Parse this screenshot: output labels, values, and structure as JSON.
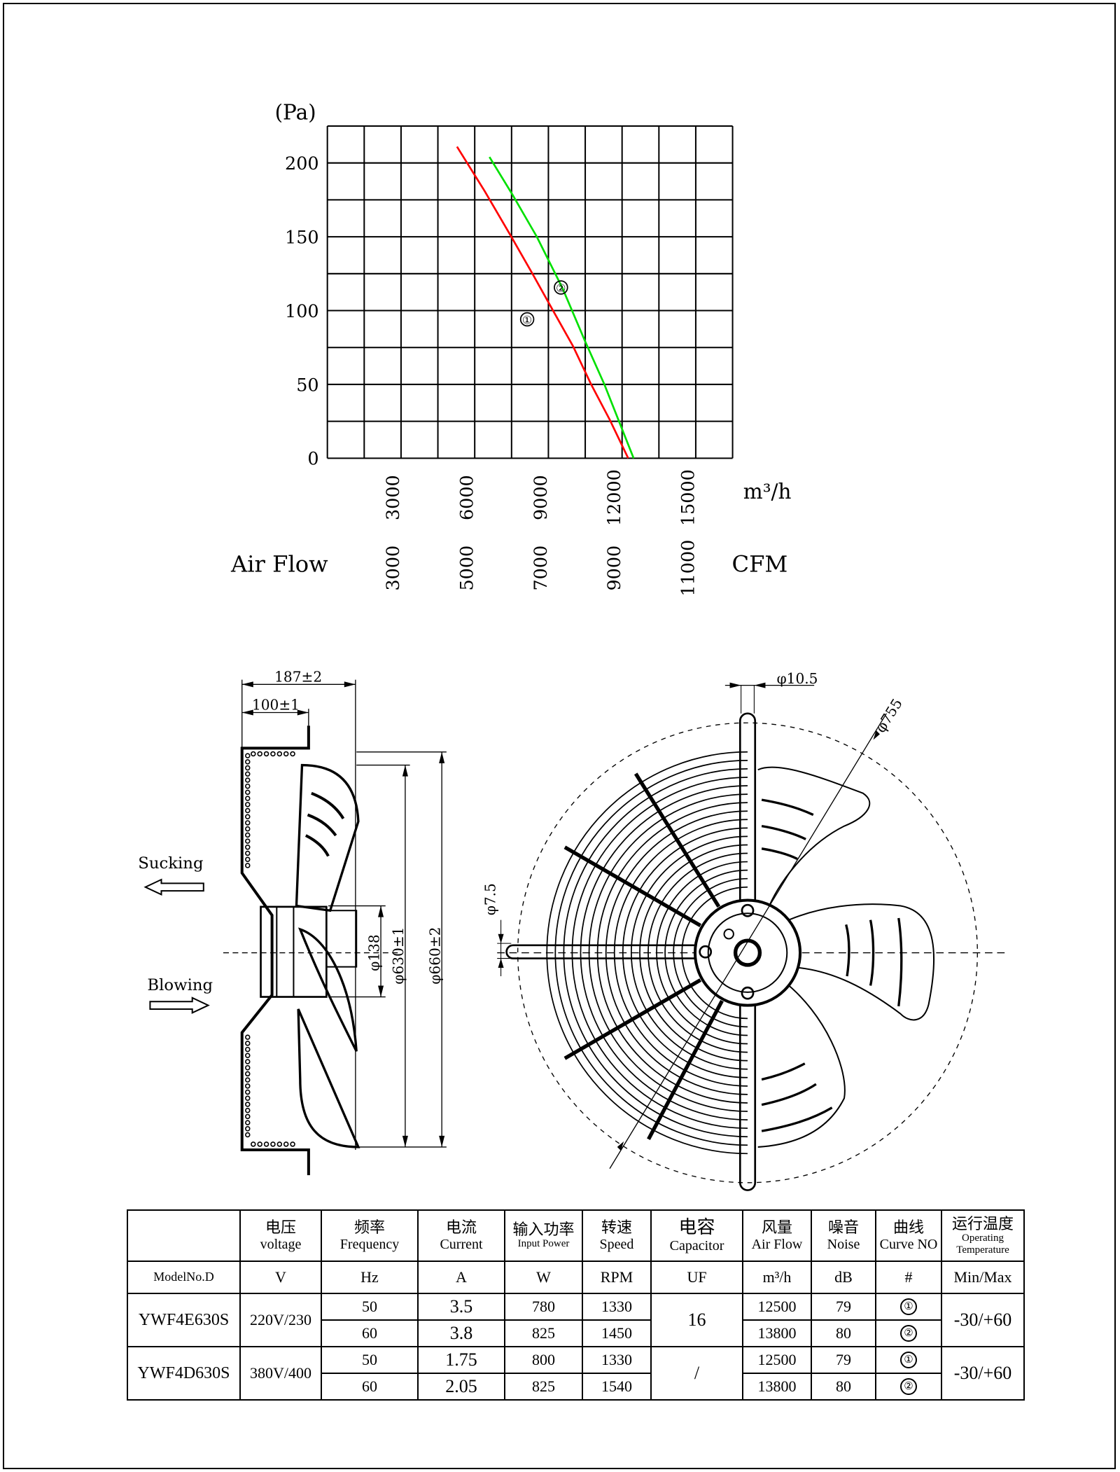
{
  "chart_data": {
    "type": "line",
    "ylabel": "(Pa)",
    "xlabel": "Air Flow",
    "x_unit_primary": "m³/h",
    "x_unit_secondary": "CFM",
    "xlim": [
      0,
      16500
    ],
    "ylim": [
      0,
      225
    ],
    "grid": true,
    "y_ticks": [
      "0",
      "50",
      "100",
      "150",
      "200"
    ],
    "y_tick_values": [
      0,
      50,
      100,
      150,
      200
    ],
    "x_ticks_primary": [
      "3000",
      "6000",
      "9000",
      "12000",
      "15000"
    ],
    "x_tick_values": [
      3000,
      6000,
      9000,
      12000,
      15000
    ],
    "x_ticks_secondary": [
      "3000",
      "5000",
      "7000",
      "9000",
      "11000"
    ],
    "series": [
      {
        "name": "①",
        "color": "#ff0000",
        "x": [
          5280,
          6400,
          7490,
          8350,
          9190,
          10000,
          10740,
          11500,
          12250
        ],
        "y": [
          211,
          181,
          150,
          125,
          100,
          76,
          50,
          26,
          0
        ]
      },
      {
        "name": "②",
        "color": "#00e000",
        "x": [
          6600,
          7520,
          8530,
          9580,
          10500,
          11280,
          11970,
          12470
        ],
        "y": [
          204,
          179,
          150,
          115,
          79,
          50,
          21,
          0
        ]
      }
    ],
    "annotations": [
      "①",
      "②"
    ]
  },
  "drawing": {
    "side_view": {
      "sucking": "Sucking",
      "blowing": "Blowing",
      "dim_depth": "187±2",
      "dim_flange": "100±1",
      "dim_hub": "φ138",
      "dim_blade": "φ630±1",
      "dim_frame": "φ660±2"
    },
    "front_view": {
      "dim_hole": "φ10.5",
      "dim_mount": "φ755",
      "dim_slot": "φ7.5"
    }
  },
  "table": {
    "headers": [
      {
        "zh": "",
        "en": ""
      },
      {
        "zh": "电压",
        "en": "voltage"
      },
      {
        "zh": "频率",
        "en": "Frequency"
      },
      {
        "zh": "电流",
        "en": "Current"
      },
      {
        "zh": "输入功率",
        "en": "Input Power"
      },
      {
        "zh": "转速",
        "en": "Speed"
      },
      {
        "zh": "电容",
        "en": "Capacitor"
      },
      {
        "zh": "风量",
        "en": "Air Flow"
      },
      {
        "zh": "噪音",
        "en": "Noise"
      },
      {
        "zh": "曲线",
        "en": "Curve NO"
      },
      {
        "zh": "运行温度",
        "en": "Operating",
        "en2": "Temperature"
      }
    ],
    "units": [
      "ModelNo.D",
      "V",
      "Hz",
      "A",
      "W",
      "RPM",
      "UF",
      "m³/h",
      "dB",
      "#",
      "Min/Max"
    ],
    "models": [
      {
        "model": "YWF4E630S",
        "voltage": "220V/230",
        "capacitor": "16",
        "temp": "-30/+60",
        "rows": [
          {
            "hz": "50",
            "current": "3.5",
            "power": "780",
            "rpm": "1330",
            "airflow": "12500",
            "noise": "79",
            "curve": "①"
          },
          {
            "hz": "60",
            "current": "3.8",
            "power": "825",
            "rpm": "1450",
            "airflow": "13800",
            "noise": "80",
            "curve": "②"
          }
        ]
      },
      {
        "model": "YWF4D630S",
        "voltage": "380V/400",
        "capacitor": "/",
        "temp": "-30/+60",
        "rows": [
          {
            "hz": "50",
            "current": "1.75",
            "power": "800",
            "rpm": "1330",
            "airflow": "12500",
            "noise": "79",
            "curve": "①"
          },
          {
            "hz": "60",
            "current": "2.05",
            "power": "825",
            "rpm": "1540",
            "airflow": "13800",
            "noise": "80",
            "curve": "②"
          }
        ]
      }
    ]
  }
}
